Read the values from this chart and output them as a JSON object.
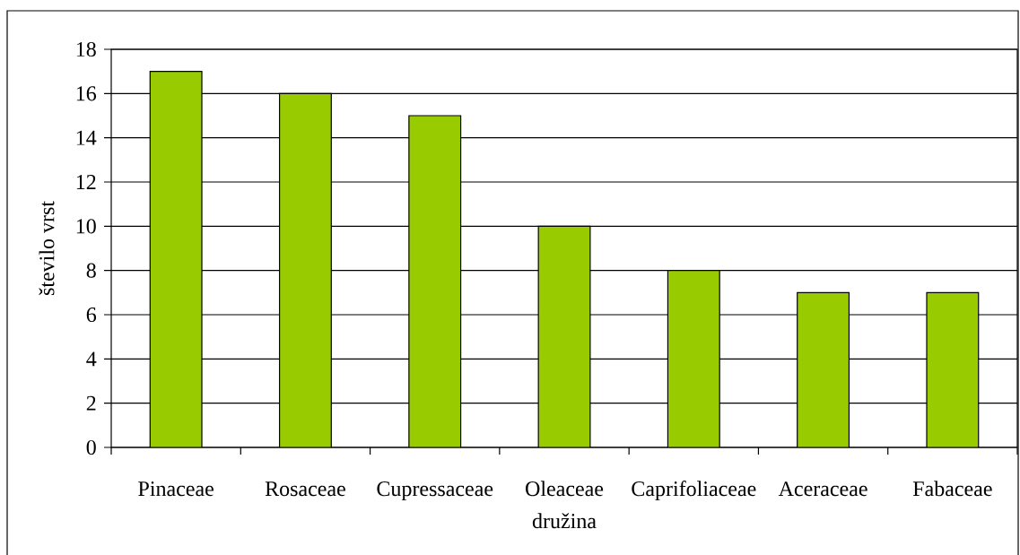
{
  "chart_data": {
    "type": "bar",
    "xlabel": "družina",
    "ylabel": "število vrst",
    "categories": [
      "Pinaceae",
      "Rosaceae",
      "Cupressaceae",
      "Oleaceae",
      "Caprifoliaceae",
      "Aceraceae",
      "Fabaceae"
    ],
    "values": [
      17,
      16,
      15,
      10,
      8,
      7,
      7
    ],
    "color": "#99cc00",
    "ylim": [
      0,
      18
    ],
    "yticks": [
      0,
      2,
      4,
      6,
      8,
      10,
      12,
      14,
      16,
      18
    ],
    "grid": "y"
  }
}
